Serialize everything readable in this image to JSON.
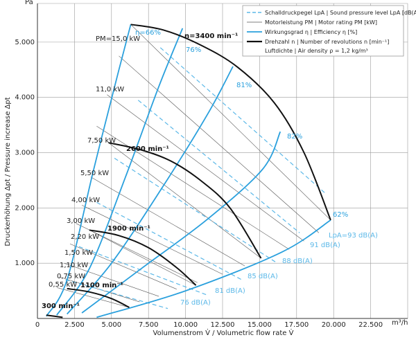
{
  "chart_data": {
    "type": "line",
    "title": "",
    "xlabel": "Volumenstrom V̇ / Volumetric flow rate V̇",
    "ylabel": "Druckerhöhung Δpt / Pressure increase Δpt",
    "x_unit": "m³/h",
    "y_unit": "Pa",
    "xlim": [
      0,
      25000
    ],
    "ylim": [
      0,
      5700
    ],
    "x_ticks": [
      0,
      2500,
      5000,
      7500,
      10000,
      12500,
      15000,
      17500,
      20000,
      22500
    ],
    "x_tick_labels": [
      "0",
      "2.500",
      "5.000",
      "7.500",
      "10.000",
      "12.500",
      "15.000",
      "17.500",
      "20.000",
      "22.500"
    ],
    "y_ticks": [
      1000,
      2000,
      3000,
      4000,
      5000
    ],
    "y_tick_labels": [
      "1.000",
      "2.000",
      "3.000",
      "4.000",
      "5.000"
    ],
    "grid": true,
    "legend_position": "top-right",
    "legend": [
      {
        "key": "sound",
        "style": "dashed",
        "color": "#5bb8e8",
        "label": "Schalldruckpegel LpA | Sound pressure level LpA [dB(A)]"
      },
      {
        "key": "motor",
        "style": "thin",
        "color": "#555555",
        "label": "Motorleistung PM | Motor rating PM [kW]"
      },
      {
        "key": "efficiency",
        "style": "solid",
        "color": "#2aa0dd",
        "label": "Wirkungsgrad η | Efficiency η [%]"
      },
      {
        "key": "speed",
        "style": "thick",
        "color": "#111111",
        "label": "Drehzahl n | Number of revolutions n [min⁻¹]"
      },
      {
        "key": "density",
        "style": "none",
        "color": "",
        "label": "Luftdichte | Air density ρ = 1,2 kg/m³"
      }
    ],
    "speed_curves": [
      {
        "label": "n=3400 min⁻¹",
        "points": [
          [
            6300,
            5320
          ],
          [
            8500,
            5220
          ],
          [
            11000,
            4950
          ],
          [
            13500,
            4550
          ],
          [
            16000,
            3900
          ],
          [
            18000,
            3000
          ],
          [
            19800,
            1780
          ]
        ]
      },
      {
        "label": "2600 min⁻¹",
        "points": [
          [
            4800,
            3180
          ],
          [
            7000,
            3050
          ],
          [
            9000,
            2850
          ],
          [
            11000,
            2500
          ],
          [
            13000,
            2000
          ],
          [
            15100,
            1090
          ]
        ]
      },
      {
        "label": "1900 min⁻¹",
        "points": [
          [
            3500,
            1600
          ],
          [
            5500,
            1500
          ],
          [
            7500,
            1280
          ],
          [
            9400,
            920
          ],
          [
            10700,
            600
          ]
        ]
      },
      {
        "label": "1100 min⁻¹",
        "points": [
          [
            2000,
            540
          ],
          [
            3500,
            480
          ],
          [
            5000,
            360
          ],
          [
            6200,
            200
          ]
        ]
      },
      {
        "label": "300 min⁻¹",
        "points": [
          [
            600,
            60
          ],
          [
            1700,
            20
          ]
        ]
      }
    ],
    "efficiency_curves": [
      {
        "label": "η=66%",
        "points": [
          [
            600,
            40
          ],
          [
            2000,
            700
          ],
          [
            3800,
            2700
          ],
          [
            5500,
            4500
          ],
          [
            6300,
            5320
          ]
        ]
      },
      {
        "label": "76%",
        "points": [
          [
            1300,
            60
          ],
          [
            3500,
            900
          ],
          [
            6000,
            2600
          ],
          [
            8200,
            4200
          ],
          [
            9800,
            5250
          ]
        ]
      },
      {
        "label": "81%",
        "points": [
          [
            2000,
            80
          ],
          [
            5000,
            1000
          ],
          [
            8500,
            2400
          ],
          [
            11500,
            3700
          ],
          [
            13200,
            4560
          ]
        ]
      },
      {
        "label": "82%",
        "points": [
          [
            3000,
            100
          ],
          [
            7000,
            900
          ],
          [
            11500,
            1800
          ],
          [
            15200,
            2700
          ],
          [
            16400,
            3380
          ]
        ]
      },
      {
        "label": "62%",
        "points": [
          [
            4000,
            20
          ],
          [
            10000,
            500
          ],
          [
            16500,
            1200
          ],
          [
            19800,
            1780
          ]
        ]
      }
    ],
    "motor_labels": [
      "PM=15,0 kW",
      "11,0 kW",
      "7,50 kW",
      "5,50 kW",
      "4,00 kW",
      "3,00 kW",
      "2,20 kW",
      "1,50 kW",
      "1,10 kW",
      "0,75 kW",
      "0,55 kW"
    ],
    "motor_lines": [
      {
        "from": [
          6300,
          5320
        ],
        "to": [
          19800,
          1780
        ]
      },
      {
        "from": [
          5500,
          4750
        ],
        "to": [
          19000,
          1550
        ]
      },
      {
        "from": [
          4700,
          4050
        ],
        "to": [
          18000,
          1400
        ]
      },
      {
        "from": [
          4000,
          3480
        ],
        "to": [
          17000,
          1250
        ]
      },
      {
        "from": [
          4800,
          3180
        ],
        "to": [
          15100,
          1090
        ]
      },
      {
        "from": [
          3600,
          2560
        ],
        "to": [
          14000,
          950
        ]
      },
      {
        "from": [
          3000,
          2050
        ],
        "to": [
          12500,
          800
        ]
      },
      {
        "from": [
          2600,
          1720
        ],
        "to": [
          10800,
          650
        ]
      },
      {
        "from": [
          2200,
          1350
        ],
        "to": [
          9400,
          530
        ]
      },
      {
        "from": [
          3500,
          1600
        ],
        "to": [
          10700,
          600
        ]
      },
      {
        "from": [
          1800,
          1000
        ],
        "to": [
          8200,
          400
        ]
      },
      {
        "from": [
          1500,
          750
        ],
        "to": [
          6900,
          300
        ]
      },
      {
        "from": [
          1300,
          560
        ],
        "to": [
          6200,
          200
        ]
      }
    ],
    "sound_lines": [
      {
        "label": "LpA=93 dB(A)",
        "from": [
          8300,
          4900
        ],
        "to": [
          19500,
          2250
        ]
      },
      {
        "label": "91 dB(A)",
        "from": [
          6800,
          3950
        ],
        "to": [
          17700,
          1550
        ]
      },
      {
        "label": "88 dB(A)",
        "from": [
          5200,
          2900
        ],
        "to": [
          16200,
          1000
        ]
      },
      {
        "label": "85 dB(A)",
        "from": [
          4000,
          2100
        ],
        "to": [
          13800,
          700
        ]
      },
      {
        "label": "81 dB(A)",
        "from": [
          2800,
          1300
        ],
        "to": [
          11500,
          420
        ]
      },
      {
        "label": "76 dB(A)",
        "from": [
          1900,
          700
        ],
        "to": [
          8800,
          180
        ]
      }
    ],
    "bottom_boundary": [
      [
        600,
        40
      ],
      [
        4000,
        20
      ],
      [
        10000,
        500
      ],
      [
        16500,
        1200
      ],
      [
        19800,
        1780
      ]
    ]
  }
}
